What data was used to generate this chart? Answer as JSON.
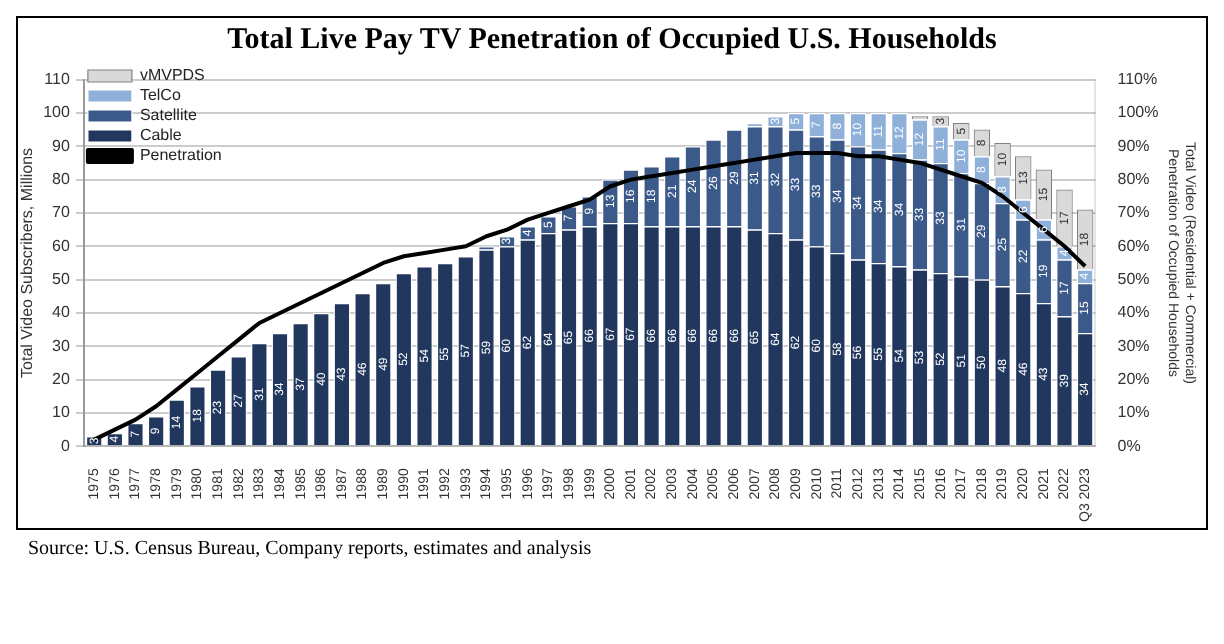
{
  "chart_data": {
    "type": "bar",
    "title": "Total Live Pay TV Penetration of Occupied U.S. Households",
    "ylabel": "Total Video Subscribers, Millions",
    "y2label": "Total Video (Residential + Commercial) Penetration of Occupied Households",
    "annotations": [
      "Source: U.S. Census Bureau, Company reports, estimates and analysis"
    ],
    "categories": [
      "1975",
      "1976",
      "1977",
      "1978",
      "1979",
      "1980",
      "1981",
      "1982",
      "1983",
      "1984",
      "1985",
      "1986",
      "1987",
      "1988",
      "1989",
      "1990",
      "1991",
      "1992",
      "1993",
      "1994",
      "1995",
      "1996",
      "1997",
      "1998",
      "1999",
      "2000",
      "2001",
      "2002",
      "2003",
      "2004",
      "2005",
      "2006",
      "2007",
      "2008",
      "2009",
      "2010",
      "2011",
      "2012",
      "2013",
      "2014",
      "2015",
      "2016",
      "2017",
      "2018",
      "2019",
      "2020",
      "2021",
      "2022",
      "Q3 2023"
    ],
    "stacked": true,
    "legend": "top left",
    "grid": "y",
    "ylim": [
      0,
      110
    ],
    "yticks": [
      0,
      10,
      20,
      30,
      40,
      50,
      60,
      70,
      80,
      90,
      100,
      110
    ],
    "y2lim": [
      0,
      110
    ],
    "y2ticks": [
      {
        "value": 0,
        "label": "0%"
      },
      {
        "value": 10,
        "label": "10%"
      },
      {
        "value": 20,
        "label": "20%"
      },
      {
        "value": 30,
        "label": "30%"
      },
      {
        "value": 40,
        "label": "40%"
      },
      {
        "value": 50,
        "label": "50%"
      },
      {
        "value": 60,
        "label": "60%"
      },
      {
        "value": 70,
        "label": "70%"
      },
      {
        "value": 80,
        "label": "80%"
      },
      {
        "value": 90,
        "label": "90%"
      },
      {
        "value": 100,
        "label": "100%"
      },
      {
        "value": 110,
        "label": "110%"
      }
    ],
    "series": [
      {
        "name": "Cable",
        "color": "#22375e",
        "values": [
          3,
          4,
          7,
          9,
          14,
          18,
          23,
          27,
          31,
          34,
          37,
          40,
          43,
          46,
          49,
          52,
          54,
          55,
          57,
          59,
          60,
          62,
          64,
          65,
          66,
          67,
          67,
          66,
          66,
          66,
          66,
          66,
          65,
          64,
          62,
          60,
          58,
          56,
          55,
          54,
          53,
          52,
          51,
          50,
          48,
          46,
          43,
          39,
          34
        ],
        "value_labels": [
          "3",
          "4",
          "7",
          "9",
          "14",
          "18",
          "23",
          "27",
          "31",
          "34",
          "37",
          "40",
          "43",
          "46",
          "49",
          "52",
          "54",
          "55",
          "57",
          "59",
          "60",
          "62",
          "64",
          "65",
          "66",
          "67",
          "67",
          "66",
          "66",
          "66",
          "66",
          "66",
          "65",
          "64",
          "62",
          "60",
          "58",
          "56",
          "55",
          "54",
          "53",
          "52",
          "51",
          "50",
          "48",
          "46",
          "43",
          "39",
          "34"
        ]
      },
      {
        "name": "Satellite",
        "color": "#3b5a8a",
        "values": [
          null,
          null,
          null,
          null,
          null,
          null,
          null,
          null,
          null,
          null,
          null,
          null,
          null,
          null,
          null,
          null,
          null,
          null,
          null,
          1,
          3,
          4,
          5,
          7,
          9,
          13,
          16,
          18,
          21,
          24,
          26,
          29,
          31,
          32,
          33,
          33,
          34,
          34,
          34,
          34,
          33,
          33,
          31,
          29,
          25,
          22,
          19,
          17,
          15
        ],
        "value_labels": [
          null,
          null,
          null,
          null,
          null,
          null,
          null,
          null,
          null,
          null,
          null,
          null,
          null,
          null,
          null,
          null,
          null,
          null,
          null,
          null,
          "3",
          "4",
          "5",
          "7",
          "9",
          "13",
          "16",
          "18",
          "21",
          "24",
          "26",
          "29",
          "31",
          "32",
          "33",
          "33",
          "34",
          "34",
          "34",
          "34",
          "33",
          "33",
          "31",
          "29",
          "25",
          "22",
          "19",
          "17",
          "15"
        ]
      },
      {
        "name": "TelCo",
        "color": "#8fb0d9",
        "values": [
          null,
          null,
          null,
          null,
          null,
          null,
          null,
          null,
          null,
          null,
          null,
          null,
          null,
          null,
          null,
          null,
          null,
          null,
          null,
          null,
          null,
          null,
          null,
          null,
          null,
          null,
          null,
          null,
          null,
          null,
          null,
          null,
          1,
          3,
          5,
          7,
          8,
          10,
          11,
          12,
          12,
          11,
          10,
          8,
          8,
          6,
          6,
          4,
          4
        ],
        "value_labels": [
          null,
          null,
          null,
          null,
          null,
          null,
          null,
          null,
          null,
          null,
          null,
          null,
          null,
          null,
          null,
          null,
          null,
          null,
          null,
          null,
          null,
          null,
          null,
          null,
          null,
          null,
          null,
          null,
          null,
          null,
          null,
          null,
          null,
          "3",
          "5",
          "7",
          "8",
          "10",
          "11",
          "12",
          "12",
          "11",
          "10",
          "8",
          "8",
          "6",
          "6",
          "4",
          "4"
        ]
      },
      {
        "name": "vMVPDS",
        "color": "#d9d9d9",
        "values": [
          null,
          null,
          null,
          null,
          null,
          null,
          null,
          null,
          null,
          null,
          null,
          null,
          null,
          null,
          null,
          null,
          null,
          null,
          null,
          null,
          null,
          null,
          null,
          null,
          null,
          null,
          null,
          null,
          null,
          null,
          null,
          null,
          null,
          null,
          null,
          null,
          null,
          null,
          null,
          null,
          1,
          3,
          5,
          8,
          10,
          13,
          15,
          17,
          18
        ],
        "value_labels": [
          null,
          null,
          null,
          null,
          null,
          null,
          null,
          null,
          null,
          null,
          null,
          null,
          null,
          null,
          null,
          null,
          null,
          null,
          null,
          null,
          null,
          null,
          null,
          null,
          null,
          null,
          null,
          null,
          null,
          null,
          null,
          null,
          null,
          null,
          null,
          null,
          null,
          null,
          null,
          null,
          null,
          "3",
          "5",
          "8",
          "10",
          "13",
          "15",
          "17",
          "18"
        ]
      },
      {
        "name": "Penetration",
        "type": "line",
        "axis": "y2",
        "color": "#000000",
        "marker": "none",
        "values": [
          2,
          5,
          8,
          12,
          17,
          22,
          27,
          32,
          37,
          40,
          43,
          46,
          49,
          52,
          55,
          57,
          58,
          59,
          60,
          63,
          65,
          68,
          70,
          72,
          74,
          78,
          80,
          81,
          82,
          83,
          84,
          85,
          86,
          87,
          88,
          88,
          88,
          87,
          87,
          86,
          85,
          83,
          81,
          79,
          75,
          70,
          65,
          60,
          54
        ]
      }
    ]
  }
}
